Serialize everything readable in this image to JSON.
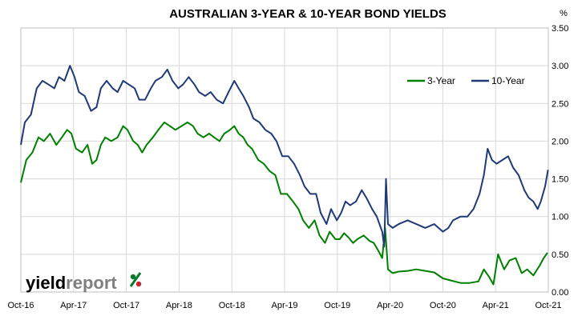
{
  "chart_data": {
    "type": "line",
    "title": "AUSTRALIAN 3-YEAR & 10-YEAR BOND YIELDS",
    "y_unit": "%",
    "ylim": [
      0,
      3.5
    ],
    "y_ticks": [
      "0.00",
      "0.50",
      "1.00",
      "1.50",
      "2.00",
      "2.50",
      "3.00",
      "3.50"
    ],
    "x_ticks": [
      "Oct-16",
      "Apr-17",
      "Oct-17",
      "Apr-18",
      "Oct-18",
      "Apr-19",
      "Oct-19",
      "Apr-20",
      "Oct-20",
      "Apr-21",
      "Oct-21"
    ],
    "x_range": [
      "2016-10-01",
      "2021-10-01"
    ],
    "grid": true,
    "legend_placement": "top-right",
    "series": [
      {
        "name": "3-Year",
        "color": "#008000",
        "points": [
          [
            "2016-10-01",
            1.45
          ],
          [
            "2016-10-20",
            1.75
          ],
          [
            "2016-11-10",
            1.85
          ],
          [
            "2016-12-01",
            2.05
          ],
          [
            "2016-12-20",
            2.0
          ],
          [
            "2017-01-10",
            2.1
          ],
          [
            "2017-02-01",
            1.95
          ],
          [
            "2017-02-20",
            2.05
          ],
          [
            "2017-03-10",
            2.15
          ],
          [
            "2017-03-25",
            2.1
          ],
          [
            "2017-04-10",
            1.9
          ],
          [
            "2017-05-01",
            1.85
          ],
          [
            "2017-05-20",
            1.95
          ],
          [
            "2017-06-05",
            1.7
          ],
          [
            "2017-06-20",
            1.75
          ],
          [
            "2017-07-05",
            1.95
          ],
          [
            "2017-07-20",
            2.05
          ],
          [
            "2017-08-10",
            2.0
          ],
          [
            "2017-09-01",
            2.05
          ],
          [
            "2017-09-20",
            2.2
          ],
          [
            "2017-10-05",
            2.15
          ],
          [
            "2017-10-25",
            2.0
          ],
          [
            "2017-11-10",
            1.95
          ],
          [
            "2017-11-25",
            1.85
          ],
          [
            "2017-12-10",
            1.95
          ],
          [
            "2018-01-01",
            2.05
          ],
          [
            "2018-01-20",
            2.15
          ],
          [
            "2018-02-10",
            2.25
          ],
          [
            "2018-03-01",
            2.2
          ],
          [
            "2018-03-20",
            2.15
          ],
          [
            "2018-04-10",
            2.2
          ],
          [
            "2018-05-01",
            2.25
          ],
          [
            "2018-05-20",
            2.2
          ],
          [
            "2018-06-05",
            2.1
          ],
          [
            "2018-06-25",
            2.05
          ],
          [
            "2018-07-15",
            2.1
          ],
          [
            "2018-08-01",
            2.05
          ],
          [
            "2018-08-20",
            2.0
          ],
          [
            "2018-09-05",
            2.1
          ],
          [
            "2018-09-25",
            2.15
          ],
          [
            "2018-10-10",
            2.2
          ],
          [
            "2018-10-25",
            2.1
          ],
          [
            "2018-11-10",
            2.05
          ],
          [
            "2018-11-25",
            1.95
          ],
          [
            "2018-12-10",
            1.9
          ],
          [
            "2019-01-01",
            1.75
          ],
          [
            "2019-01-20",
            1.7
          ],
          [
            "2019-02-10",
            1.6
          ],
          [
            "2019-03-01",
            1.55
          ],
          [
            "2019-03-20",
            1.3
          ],
          [
            "2019-04-10",
            1.3
          ],
          [
            "2019-05-01",
            1.2
          ],
          [
            "2019-05-20",
            1.1
          ],
          [
            "2019-06-05",
            0.95
          ],
          [
            "2019-06-25",
            0.85
          ],
          [
            "2019-07-15",
            0.95
          ],
          [
            "2019-08-01",
            0.75
          ],
          [
            "2019-08-20",
            0.65
          ],
          [
            "2019-09-05",
            0.8
          ],
          [
            "2019-09-25",
            0.7
          ],
          [
            "2019-10-10",
            0.7
          ],
          [
            "2019-10-25",
            0.78
          ],
          [
            "2019-11-10",
            0.72
          ],
          [
            "2019-11-25",
            0.65
          ],
          [
            "2019-12-10",
            0.7
          ],
          [
            "2020-01-01",
            0.75
          ],
          [
            "2020-01-20",
            0.68
          ],
          [
            "2020-02-05",
            0.65
          ],
          [
            "2020-02-20",
            0.55
          ],
          [
            "2020-03-05",
            0.45
          ],
          [
            "2020-03-15",
            0.85
          ],
          [
            "2020-03-25",
            0.3
          ],
          [
            "2020-04-10",
            0.25
          ],
          [
            "2020-05-01",
            0.27
          ],
          [
            "2020-06-01",
            0.28
          ],
          [
            "2020-07-01",
            0.3
          ],
          [
            "2020-08-01",
            0.28
          ],
          [
            "2020-09-01",
            0.26
          ],
          [
            "2020-10-01",
            0.18
          ],
          [
            "2020-11-01",
            0.15
          ],
          [
            "2020-12-01",
            0.12
          ],
          [
            "2021-01-01",
            0.12
          ],
          [
            "2021-02-01",
            0.14
          ],
          [
            "2021-02-20",
            0.3
          ],
          [
            "2021-03-10",
            0.2
          ],
          [
            "2021-03-25",
            0.1
          ],
          [
            "2021-04-10",
            0.5
          ],
          [
            "2021-05-01",
            0.3
          ],
          [
            "2021-05-20",
            0.42
          ],
          [
            "2021-06-10",
            0.45
          ],
          [
            "2021-07-01",
            0.25
          ],
          [
            "2021-07-20",
            0.3
          ],
          [
            "2021-08-10",
            0.22
          ],
          [
            "2021-09-01",
            0.35
          ],
          [
            "2021-09-15",
            0.45
          ],
          [
            "2021-09-28",
            0.52
          ]
        ]
      },
      {
        "name": "10-Year",
        "color": "#1f3a77",
        "points": [
          [
            "2016-10-01",
            1.95
          ],
          [
            "2016-10-15",
            2.25
          ],
          [
            "2016-11-05",
            2.35
          ],
          [
            "2016-11-25",
            2.7
          ],
          [
            "2016-12-15",
            2.8
          ],
          [
            "2017-01-05",
            2.75
          ],
          [
            "2017-01-25",
            2.7
          ],
          [
            "2017-02-10",
            2.85
          ],
          [
            "2017-03-01",
            2.8
          ],
          [
            "2017-03-20",
            3.0
          ],
          [
            "2017-04-05",
            2.85
          ],
          [
            "2017-04-20",
            2.65
          ],
          [
            "2017-05-10",
            2.6
          ],
          [
            "2017-06-01",
            2.4
          ],
          [
            "2017-06-20",
            2.45
          ],
          [
            "2017-07-05",
            2.7
          ],
          [
            "2017-07-25",
            2.8
          ],
          [
            "2017-08-15",
            2.7
          ],
          [
            "2017-09-01",
            2.65
          ],
          [
            "2017-09-20",
            2.8
          ],
          [
            "2017-10-10",
            2.75
          ],
          [
            "2017-10-30",
            2.7
          ],
          [
            "2017-11-15",
            2.55
          ],
          [
            "2017-12-05",
            2.55
          ],
          [
            "2017-12-25",
            2.7
          ],
          [
            "2018-01-10",
            2.8
          ],
          [
            "2018-02-01",
            2.85
          ],
          [
            "2018-02-20",
            2.95
          ],
          [
            "2018-03-10",
            2.8
          ],
          [
            "2018-03-30",
            2.7
          ],
          [
            "2018-04-15",
            2.75
          ],
          [
            "2018-05-05",
            2.85
          ],
          [
            "2018-05-25",
            2.75
          ],
          [
            "2018-06-10",
            2.65
          ],
          [
            "2018-07-01",
            2.6
          ],
          [
            "2018-07-20",
            2.65
          ],
          [
            "2018-08-10",
            2.55
          ],
          [
            "2018-09-01",
            2.5
          ],
          [
            "2018-09-20",
            2.65
          ],
          [
            "2018-10-10",
            2.8
          ],
          [
            "2018-10-25",
            2.7
          ],
          [
            "2018-11-10",
            2.6
          ],
          [
            "2018-11-30",
            2.45
          ],
          [
            "2018-12-15",
            2.3
          ],
          [
            "2019-01-05",
            2.25
          ],
          [
            "2019-01-25",
            2.15
          ],
          [
            "2019-02-15",
            2.1
          ],
          [
            "2019-03-05",
            2.0
          ],
          [
            "2019-03-25",
            1.8
          ],
          [
            "2019-04-15",
            1.8
          ],
          [
            "2019-05-05",
            1.7
          ],
          [
            "2019-05-25",
            1.55
          ],
          [
            "2019-06-10",
            1.4
          ],
          [
            "2019-06-30",
            1.3
          ],
          [
            "2019-07-20",
            1.3
          ],
          [
            "2019-08-05",
            1.05
          ],
          [
            "2019-08-25",
            0.9
          ],
          [
            "2019-09-10",
            1.1
          ],
          [
            "2019-09-30",
            0.95
          ],
          [
            "2019-10-15",
            1.05
          ],
          [
            "2019-10-30",
            1.2
          ],
          [
            "2019-11-15",
            1.15
          ],
          [
            "2019-12-05",
            1.2
          ],
          [
            "2019-12-25",
            1.35
          ],
          [
            "2020-01-10",
            1.25
          ],
          [
            "2020-01-30",
            1.1
          ],
          [
            "2020-02-15",
            1.0
          ],
          [
            "2020-03-05",
            0.8
          ],
          [
            "2020-03-12",
            0.6
          ],
          [
            "2020-03-18",
            1.5
          ],
          [
            "2020-03-25",
            0.9
          ],
          [
            "2020-04-10",
            0.85
          ],
          [
            "2020-05-01",
            0.9
          ],
          [
            "2020-06-01",
            0.95
          ],
          [
            "2020-07-01",
            0.9
          ],
          [
            "2020-08-01",
            0.85
          ],
          [
            "2020-09-01",
            0.9
          ],
          [
            "2020-10-01",
            0.8
          ],
          [
            "2020-10-20",
            0.85
          ],
          [
            "2020-11-05",
            0.95
          ],
          [
            "2020-12-01",
            1.0
          ],
          [
            "2020-12-25",
            1.0
          ],
          [
            "2021-01-15",
            1.1
          ],
          [
            "2021-02-05",
            1.3
          ],
          [
            "2021-02-20",
            1.55
          ],
          [
            "2021-03-05",
            1.9
          ],
          [
            "2021-03-20",
            1.75
          ],
          [
            "2021-04-05",
            1.7
          ],
          [
            "2021-04-25",
            1.75
          ],
          [
            "2021-05-15",
            1.8
          ],
          [
            "2021-06-01",
            1.65
          ],
          [
            "2021-06-20",
            1.55
          ],
          [
            "2021-07-10",
            1.35
          ],
          [
            "2021-07-25",
            1.25
          ],
          [
            "2021-08-10",
            1.2
          ],
          [
            "2021-08-25",
            1.1
          ],
          [
            "2021-09-05",
            1.2
          ],
          [
            "2021-09-20",
            1.4
          ],
          [
            "2021-09-30",
            1.62
          ]
        ]
      }
    ]
  },
  "logo": {
    "part1": "yield",
    "part2": "report",
    "symbol": "%"
  }
}
